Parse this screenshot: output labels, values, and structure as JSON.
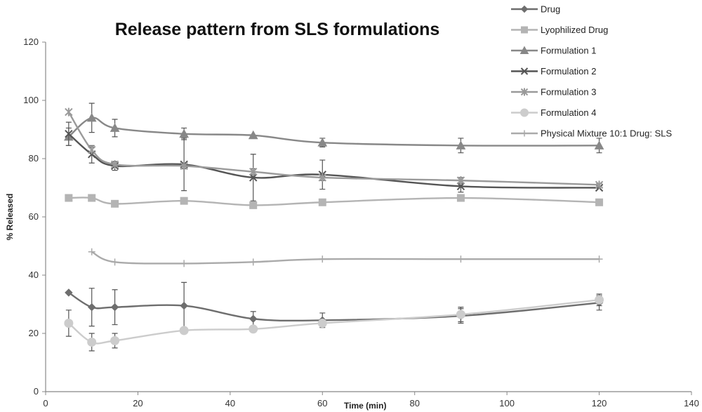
{
  "chart_data": {
    "type": "line",
    "title": "Release pattern from SLS formulations",
    "xlabel": "Time (min)",
    "ylabel": "% Released",
    "xlim": [
      0,
      140
    ],
    "ylim": [
      0,
      120
    ],
    "x_ticks": [
      "0",
      "20",
      "40",
      "60",
      "80",
      "100",
      "120",
      "140"
    ],
    "y_ticks": [
      "0",
      "20",
      "40",
      "60",
      "80",
      "100",
      "120"
    ],
    "grid": false,
    "legend_position": "top-right",
    "series": [
      {
        "name": "Drug",
        "color": "#6e6e6e",
        "marker": "diamond",
        "x": [
          5,
          10,
          15,
          30,
          45,
          60,
          90,
          120
        ],
        "y": [
          34,
          29,
          29,
          29.5,
          25,
          24.5,
          26,
          30.5
        ],
        "err": [
          0,
          6.5,
          6,
          8,
          2.5,
          2.5,
          2.5,
          2.5
        ]
      },
      {
        "name": "Lyophilized Drug",
        "color": "#b4b4b4",
        "marker": "square",
        "x": [
          5,
          10,
          15,
          30,
          45,
          60,
          90,
          120
        ],
        "y": [
          66.5,
          66.5,
          64.5,
          65.5,
          64,
          65,
          66.5,
          65
        ],
        "err": [
          0,
          0,
          0,
          0,
          0,
          0,
          0,
          0
        ]
      },
      {
        "name": "Formulation 1",
        "color": "#888888",
        "marker": "triangle",
        "x": [
          5,
          10,
          15,
          30,
          45,
          60,
          90,
          120
        ],
        "y": [
          87.5,
          94,
          90.5,
          88.5,
          88,
          85.5,
          84.5,
          84.5
        ],
        "err": [
          3,
          5,
          3,
          2,
          0,
          1.5,
          2.5,
          2.5
        ]
      },
      {
        "name": "Formulation 2",
        "color": "#555555",
        "marker": "x",
        "x": [
          5,
          10,
          15,
          30,
          45,
          60,
          90,
          120
        ],
        "y": [
          88.5,
          81.5,
          77.5,
          78,
          73.5,
          74.5,
          70.5,
          70
        ],
        "err": [
          4,
          3,
          1.5,
          9,
          8,
          5,
          2,
          0
        ]
      },
      {
        "name": "Formulation 3",
        "color": "#9a9a9a",
        "marker": "star",
        "x": [
          5,
          10,
          15,
          30,
          45,
          60,
          90,
          120
        ],
        "y": [
          96,
          83,
          78,
          77.5,
          75.5,
          73.5,
          72.5,
          71
        ],
        "err": [
          0,
          1,
          1,
          1,
          1,
          1,
          1,
          0.5
        ]
      },
      {
        "name": "Formulation 4",
        "color": "#cccccc",
        "marker": "circle",
        "x": [
          5,
          10,
          15,
          30,
          45,
          60,
          90,
          120
        ],
        "y": [
          23.5,
          17,
          17.5,
          21,
          21.5,
          23.5,
          26.5,
          31.5
        ],
        "err": [
          4.5,
          3,
          2.5,
          0,
          0,
          0.5,
          2.5,
          2
        ]
      },
      {
        "name": "Physical Mixture 10:1 Drug: SLS",
        "color": "#aaaaaa",
        "marker": "plus",
        "x": [
          10,
          15,
          30,
          45,
          60,
          90,
          120
        ],
        "y": [
          48,
          44.5,
          44,
          44.5,
          45.5,
          45.5,
          45.5
        ],
        "err": [
          0,
          0,
          0,
          0,
          0,
          0,
          0
        ]
      }
    ]
  }
}
